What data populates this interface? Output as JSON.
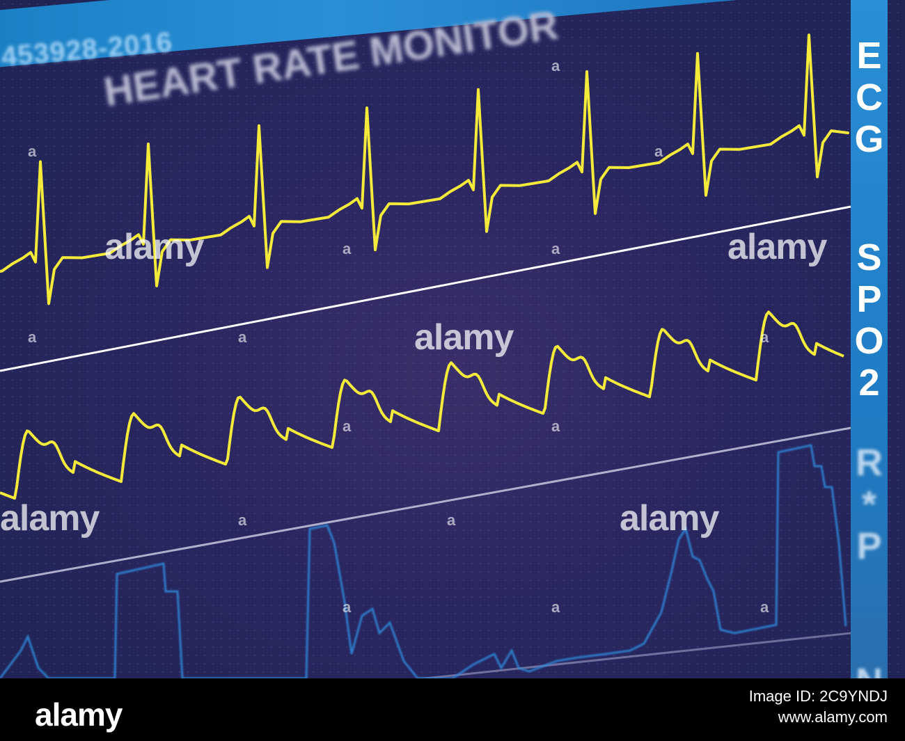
{
  "monitor": {
    "device_id": "453928-2016",
    "title": "HEART RATE MONITOR",
    "channels": {
      "ecg": [
        "E",
        "C",
        "G"
      ],
      "spo2": [
        "S",
        "P",
        "O",
        "2"
      ],
      "resp": [
        "R",
        "*",
        "P"
      ],
      "n": [
        "N"
      ]
    },
    "colors": {
      "waveform": "#f3ea3a",
      "resp_wave": "#2f86d6",
      "accent_bar": "#2a8fd6",
      "background": "#2a2660"
    }
  },
  "watermark": {
    "brand": "alamy",
    "mark": "a"
  },
  "footer": {
    "brand": "alamy",
    "image_id_line": "Image ID: 2C9YNDJ",
    "site": "www.alamy.com"
  }
}
